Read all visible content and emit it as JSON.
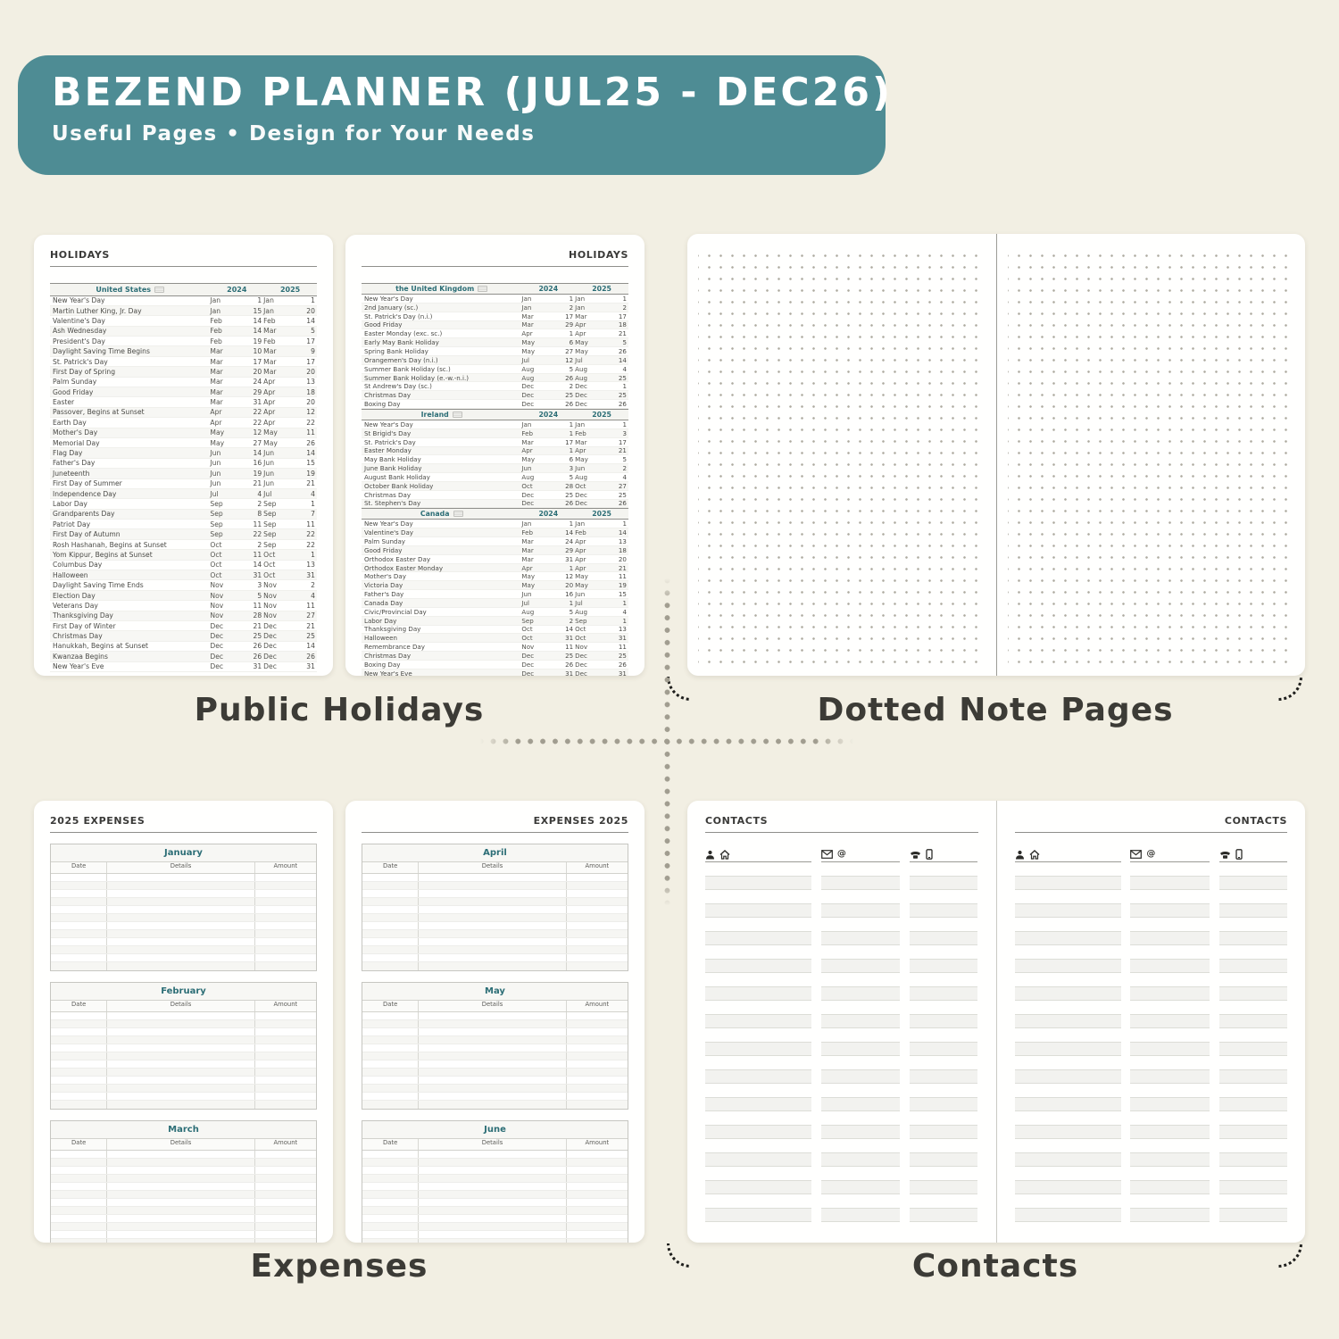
{
  "header": {
    "title": "BEZEND PLANNER (JUL25 - DEC26)",
    "subtitle": "Useful Pages  •  Design for Your Needs"
  },
  "captions": {
    "holidays": "Public Holidays",
    "dotted": "Dotted Note Pages",
    "expenses": "Expenses",
    "contacts": "Contacts"
  },
  "holidays": {
    "page_title": "HOLIDAYS",
    "year_columns": [
      "2024",
      "2025"
    ],
    "sections": [
      {
        "country": "United States",
        "flag_icon": "us-flag-icon",
        "rows": [
          [
            "New Year's Day",
            "Jan",
            "1",
            "Jan",
            "1"
          ],
          [
            "Martin Luther King, Jr. Day",
            "Jan",
            "15",
            "Jan",
            "20"
          ],
          [
            "Valentine's Day",
            "Feb",
            "14",
            "Feb",
            "14"
          ],
          [
            "Ash Wednesday",
            "Feb",
            "14",
            "Mar",
            "5"
          ],
          [
            "President's Day",
            "Feb",
            "19",
            "Feb",
            "17"
          ],
          [
            "Daylight Saving Time Begins",
            "Mar",
            "10",
            "Mar",
            "9"
          ],
          [
            "St. Patrick's Day",
            "Mar",
            "17",
            "Mar",
            "17"
          ],
          [
            "First Day of Spring",
            "Mar",
            "20",
            "Mar",
            "20"
          ],
          [
            "Palm Sunday",
            "Mar",
            "24",
            "Apr",
            "13"
          ],
          [
            "Good Friday",
            "Mar",
            "29",
            "Apr",
            "18"
          ],
          [
            "Easter",
            "Mar",
            "31",
            "Apr",
            "20"
          ],
          [
            "Passover, Begins at Sunset",
            "Apr",
            "22",
            "Apr",
            "12"
          ],
          [
            "Earth Day",
            "Apr",
            "22",
            "Apr",
            "22"
          ],
          [
            "Mother's Day",
            "May",
            "12",
            "May",
            "11"
          ],
          [
            "Memorial Day",
            "May",
            "27",
            "May",
            "26"
          ],
          [
            "Flag Day",
            "Jun",
            "14",
            "Jun",
            "14"
          ],
          [
            "Father's Day",
            "Jun",
            "16",
            "Jun",
            "15"
          ],
          [
            "Juneteenth",
            "Jun",
            "19",
            "Jun",
            "19"
          ],
          [
            "First Day of Summer",
            "Jun",
            "21",
            "Jun",
            "21"
          ],
          [
            "Independence Day",
            "Jul",
            "4",
            "Jul",
            "4"
          ],
          [
            "Labor Day",
            "Sep",
            "2",
            "Sep",
            "1"
          ],
          [
            "Grandparents Day",
            "Sep",
            "8",
            "Sep",
            "7"
          ],
          [
            "Patriot Day",
            "Sep",
            "11",
            "Sep",
            "11"
          ],
          [
            "First Day of Autumn",
            "Sep",
            "22",
            "Sep",
            "22"
          ],
          [
            "Rosh Hashanah, Begins at Sunset",
            "Oct",
            "2",
            "Sep",
            "22"
          ],
          [
            "Yom Kippur, Begins at Sunset",
            "Oct",
            "11",
            "Oct",
            "1"
          ],
          [
            "Columbus Day",
            "Oct",
            "14",
            "Oct",
            "13"
          ],
          [
            "Halloween",
            "Oct",
            "31",
            "Oct",
            "31"
          ],
          [
            "Daylight Saving Time Ends",
            "Nov",
            "3",
            "Nov",
            "2"
          ],
          [
            "Election Day",
            "Nov",
            "5",
            "Nov",
            "4"
          ],
          [
            "Veterans Day",
            "Nov",
            "11",
            "Nov",
            "11"
          ],
          [
            "Thanksgiving Day",
            "Nov",
            "28",
            "Nov",
            "27"
          ],
          [
            "First Day of Winter",
            "Dec",
            "21",
            "Dec",
            "21"
          ],
          [
            "Christmas Day",
            "Dec",
            "25",
            "Dec",
            "25"
          ],
          [
            "Hanukkah, Begins at Sunset",
            "Dec",
            "26",
            "Dec",
            "14"
          ],
          [
            "Kwanzaa Begins",
            "Dec",
            "26",
            "Dec",
            "26"
          ],
          [
            "New Year's Eve",
            "Dec",
            "31",
            "Dec",
            "31"
          ]
        ]
      },
      {
        "country": "the United Kingdom",
        "flag_icon": "uk-flag-icon",
        "rows": [
          [
            "New Year's Day",
            "Jan",
            "1",
            "Jan",
            "1"
          ],
          [
            "2nd January (sc.)",
            "Jan",
            "2",
            "Jan",
            "2"
          ],
          [
            "St. Patrick's Day (n.i.)",
            "Mar",
            "17",
            "Mar",
            "17"
          ],
          [
            "Good Friday",
            "Mar",
            "29",
            "Apr",
            "18"
          ],
          [
            "Easter Monday (exc. sc.)",
            "Apr",
            "1",
            "Apr",
            "21"
          ],
          [
            "Early May Bank Holiday",
            "May",
            "6",
            "May",
            "5"
          ],
          [
            "Spring Bank Holiday",
            "May",
            "27",
            "May",
            "26"
          ],
          [
            "Orangemen's Day (n.i.)",
            "Jul",
            "12",
            "Jul",
            "14"
          ],
          [
            "Summer Bank Holiday (sc.)",
            "Aug",
            "5",
            "Aug",
            "4"
          ],
          [
            "Summer Bank Holiday (e.-w.-n.i.)",
            "Aug",
            "26",
            "Aug",
            "25"
          ],
          [
            "St Andrew's Day (sc.)",
            "Dec",
            "2",
            "Dec",
            "1"
          ],
          [
            "Christmas Day",
            "Dec",
            "25",
            "Dec",
            "25"
          ],
          [
            "Boxing Day",
            "Dec",
            "26",
            "Dec",
            "26"
          ]
        ]
      },
      {
        "country": "Ireland",
        "flag_icon": "ireland-flag-icon",
        "rows": [
          [
            "New Year's Day",
            "Jan",
            "1",
            "Jan",
            "1"
          ],
          [
            "St Brigid's Day",
            "Feb",
            "1",
            "Feb",
            "3"
          ],
          [
            "St. Patrick's Day",
            "Mar",
            "17",
            "Mar",
            "17"
          ],
          [
            "Easter Monday",
            "Apr",
            "1",
            "Apr",
            "21"
          ],
          [
            "May Bank Holiday",
            "May",
            "6",
            "May",
            "5"
          ],
          [
            "June Bank Holiday",
            "Jun",
            "3",
            "Jun",
            "2"
          ],
          [
            "August Bank Holiday",
            "Aug",
            "5",
            "Aug",
            "4"
          ],
          [
            "October Bank Holiday",
            "Oct",
            "28",
            "Oct",
            "27"
          ],
          [
            "Christmas Day",
            "Dec",
            "25",
            "Dec",
            "25"
          ],
          [
            "St. Stephen's Day",
            "Dec",
            "26",
            "Dec",
            "26"
          ]
        ]
      },
      {
        "country": "Canada",
        "flag_icon": "canada-flag-icon",
        "rows": [
          [
            "New Year's Day",
            "Jan",
            "1",
            "Jan",
            "1"
          ],
          [
            "Valentine's Day",
            "Feb",
            "14",
            "Feb",
            "14"
          ],
          [
            "Palm Sunday",
            "Mar",
            "24",
            "Apr",
            "13"
          ],
          [
            "Good Friday",
            "Mar",
            "29",
            "Apr",
            "18"
          ],
          [
            "Orthodox Easter Day",
            "Mar",
            "31",
            "Apr",
            "20"
          ],
          [
            "Orthodox Easter Monday",
            "Apr",
            "1",
            "Apr",
            "21"
          ],
          [
            "Mother's Day",
            "May",
            "12",
            "May",
            "11"
          ],
          [
            "Victoria Day",
            "May",
            "20",
            "May",
            "19"
          ],
          [
            "Father's Day",
            "Jun",
            "16",
            "Jun",
            "15"
          ],
          [
            "Canada Day",
            "Jul",
            "1",
            "Jul",
            "1"
          ],
          [
            "Civic/Provincial Day",
            "Aug",
            "5",
            "Aug",
            "4"
          ],
          [
            "Labor Day",
            "Sep",
            "2",
            "Sep",
            "1"
          ],
          [
            "Thanksgiving Day",
            "Oct",
            "14",
            "Oct",
            "13"
          ],
          [
            "Halloween",
            "Oct",
            "31",
            "Oct",
            "31"
          ],
          [
            "Remembrance Day",
            "Nov",
            "11",
            "Nov",
            "11"
          ],
          [
            "Christmas Day",
            "Dec",
            "25",
            "Dec",
            "25"
          ],
          [
            "Boxing Day",
            "Dec",
            "26",
            "Dec",
            "26"
          ],
          [
            "New Year's Eve",
            "Dec",
            "31",
            "Dec",
            "31"
          ]
        ]
      }
    ]
  },
  "expenses": {
    "left_page_title": "2025 EXPENSES",
    "right_page_title": "EXPENSES 2025",
    "columns": [
      "Date",
      "Details",
      "Amount"
    ],
    "left_months": [
      "January",
      "February",
      "March"
    ],
    "right_months": [
      "April",
      "May",
      "June"
    ],
    "rows_per_table": 12
  },
  "contacts": {
    "page_title": "CONTACTS",
    "at_symbol": "@",
    "column_icons": [
      [
        "person-icon",
        "home-icon"
      ],
      [
        "envelope-icon",
        "at-icon"
      ],
      [
        "phone-icon",
        "mobile-icon"
      ]
    ],
    "lines_per_column": 26
  },
  "colors": {
    "banner_teal": "#4e8c94",
    "accent_teal": "#2c6e76",
    "background_cream": "#f2efe3"
  }
}
